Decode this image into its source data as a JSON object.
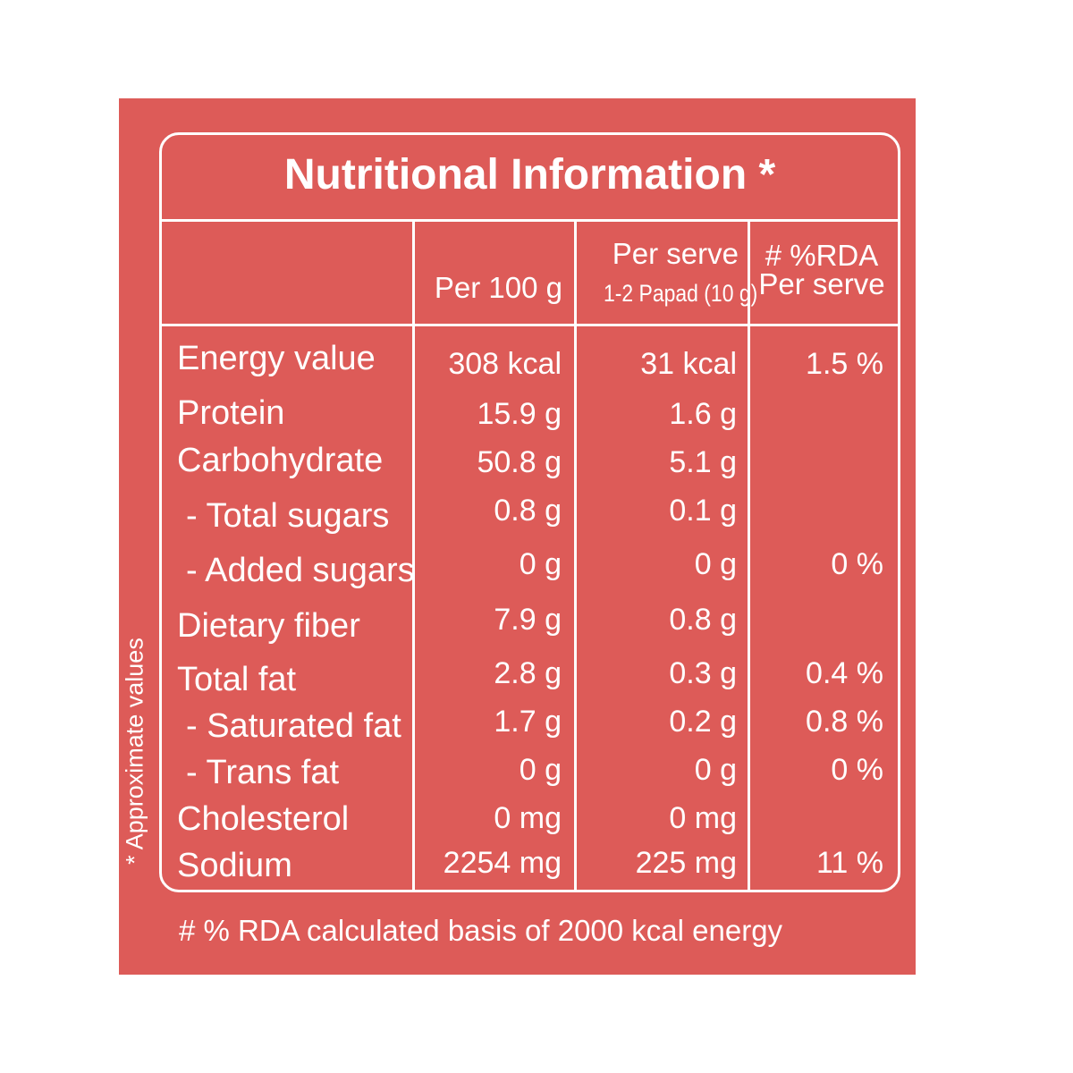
{
  "label": {
    "title": "Nutritional Information *",
    "side_note": "* Approximate values",
    "footnote": "# % RDA calculated basis of 2000 kcal energy",
    "background_color": "#dd5b58",
    "text_color": "#ffffff"
  },
  "headers": {
    "per_100": "Per 100 g",
    "per_serve_line1": "Per serve",
    "per_serve_line2": "1-2 Papad (10 g)",
    "rda_line1": "# %RDA",
    "rda_line2": "Per serve"
  },
  "rows": [
    {
      "name": "Energy value",
      "sub": false,
      "per100": "308 kcal",
      "serve": "31 kcal",
      "rda": "1.5 %"
    },
    {
      "name": "Protein",
      "sub": false,
      "per100": "15.9 g",
      "serve": "1.6 g",
      "rda": ""
    },
    {
      "name": "Carbohydrate",
      "sub": false,
      "per100": "50.8 g",
      "serve": "5.1 g",
      "rda": ""
    },
    {
      "name": "- Total sugars",
      "sub": true,
      "per100": "0.8 g",
      "serve": "0.1 g",
      "rda": ""
    },
    {
      "name": "- Added sugars",
      "sub": true,
      "per100": "0 g",
      "serve": "0 g",
      "rda": "0 %"
    },
    {
      "name": "Dietary fiber",
      "sub": false,
      "per100": "7.9 g",
      "serve": "0.8 g",
      "rda": ""
    },
    {
      "name": "Total fat",
      "sub": false,
      "per100": "2.8 g",
      "serve": "0.3 g",
      "rda": "0.4 %"
    },
    {
      "name": "- Saturated fat",
      "sub": true,
      "per100": "1.7 g",
      "serve": "0.2 g",
      "rda": "0.8 %"
    },
    {
      "name": "- Trans fat",
      "sub": true,
      "per100": "0 g",
      "serve": "0 g",
      "rda": "0 %"
    },
    {
      "name": "Cholesterol",
      "sub": false,
      "per100": "0 mg",
      "serve": "0 mg",
      "rda": ""
    },
    {
      "name": "Sodium",
      "sub": false,
      "per100": "2254 mg",
      "serve": "225 mg",
      "rda": "11 %"
    }
  ]
}
